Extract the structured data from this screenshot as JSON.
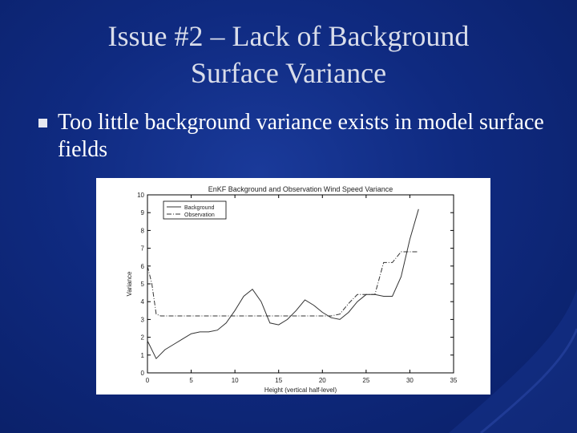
{
  "slide": {
    "title_line1": "Issue #2 – Lack of Background",
    "title_line2": "Surface Variance",
    "bullet_text": "Too little background variance exists in model surface fields",
    "colors": {
      "background": "#0f2a80",
      "title": "#d9ddea",
      "text": "#ffffff"
    }
  },
  "chart_data": {
    "type": "line",
    "title": "EnKF Background and Observation Wind Speed Variance",
    "xlabel": "Height (vertical half-level)",
    "ylabel": "Variance",
    "xlim": [
      0,
      35
    ],
    "ylim": [
      0,
      10
    ],
    "xticks": [
      0,
      5,
      10,
      15,
      20,
      25,
      30,
      35
    ],
    "yticks": [
      0,
      1,
      2,
      3,
      4,
      5,
      6,
      7,
      8,
      9,
      10
    ],
    "legend_position": "top-left",
    "series": [
      {
        "name": "Background",
        "style": "solid",
        "x": [
          0,
          1,
          2,
          3,
          4,
          5,
          6,
          7,
          8,
          9,
          10,
          11,
          12,
          13,
          14,
          15,
          16,
          17,
          18,
          19,
          20,
          21,
          22,
          23,
          24,
          25,
          26,
          27,
          28,
          29,
          30,
          31
        ],
        "y": [
          1.8,
          0.8,
          1.3,
          1.6,
          1.9,
          2.2,
          2.3,
          2.3,
          2.4,
          2.8,
          3.5,
          4.3,
          4.7,
          4.0,
          2.8,
          2.7,
          3.0,
          3.5,
          4.1,
          3.8,
          3.4,
          3.1,
          3.0,
          3.4,
          4.0,
          4.4,
          4.4,
          4.3,
          4.3,
          5.4,
          7.5,
          9.2
        ]
      },
      {
        "name": "Observation",
        "style": "dash-dot",
        "x": [
          0,
          0.5,
          1,
          1.5,
          5,
          10,
          15,
          16,
          17,
          18,
          19,
          20,
          21,
          22,
          23,
          24,
          25,
          26,
          27,
          28,
          29,
          30,
          31
        ],
        "y": [
          6.0,
          5.0,
          3.3,
          3.2,
          3.2,
          3.2,
          3.2,
          3.2,
          3.2,
          3.2,
          3.2,
          3.2,
          3.2,
          3.3,
          3.9,
          4.4,
          4.4,
          4.4,
          6.2,
          6.2,
          6.8,
          6.8,
          6.8
        ]
      }
    ]
  }
}
